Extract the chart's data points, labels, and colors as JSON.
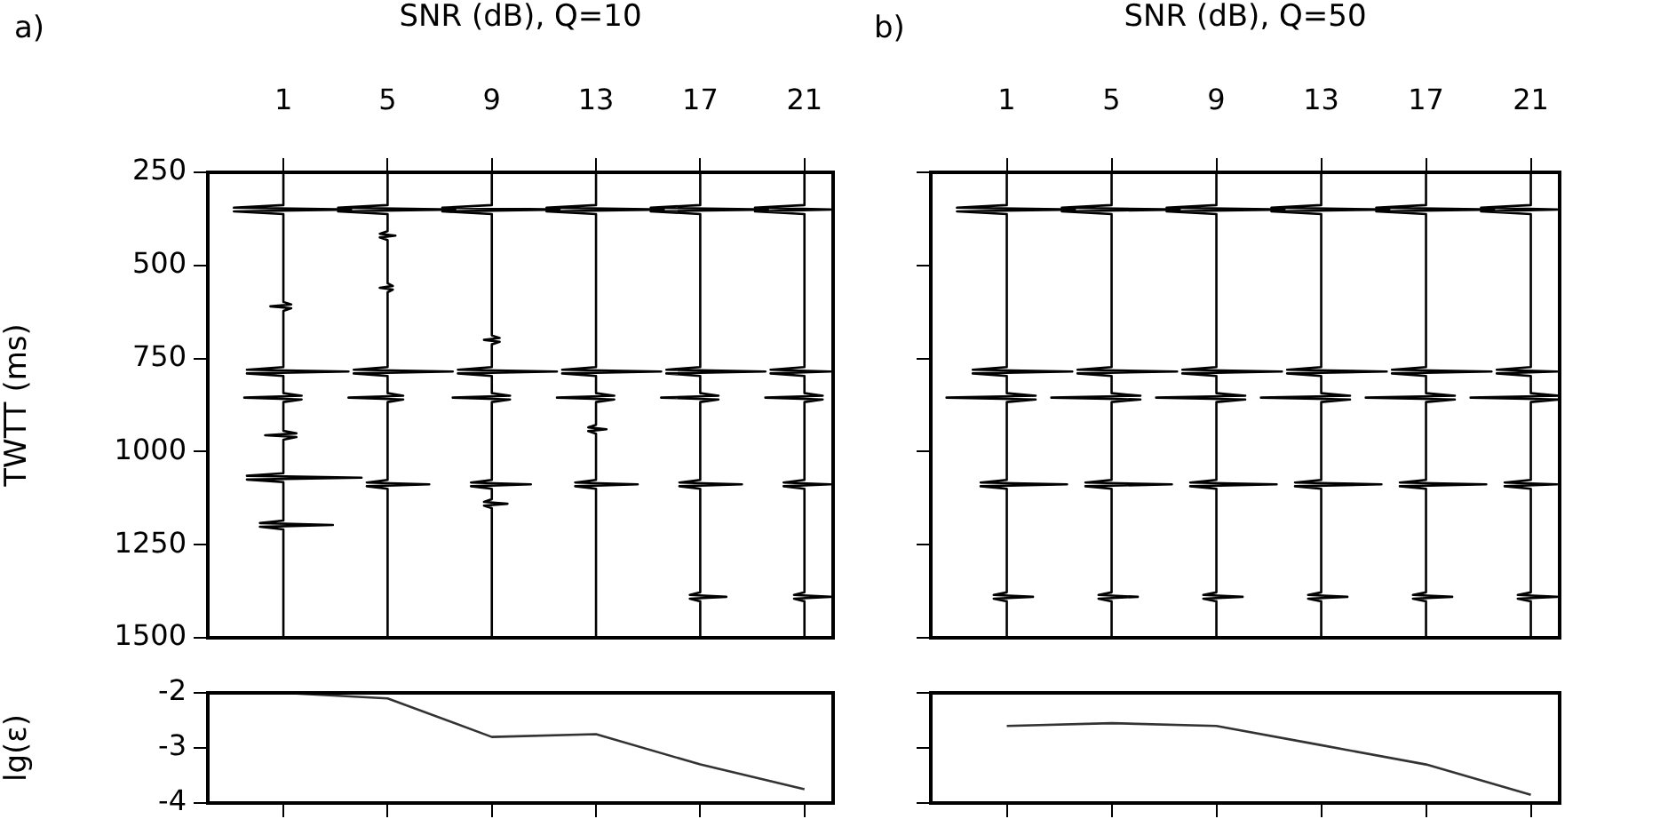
{
  "chart_data": [
    {
      "type": "line",
      "xlabel": "SNR (dB), Q=10",
      "ylabel": "TWTT (ms)",
      "annotations": [
        "a)"
      ],
      "xlim": [
        -1.9,
        22.1
      ],
      "xticks": [
        1,
        5,
        9,
        13,
        17,
        21
      ],
      "ylim": [
        1500,
        250
      ],
      "yticks": [
        250,
        500,
        750,
        1000,
        1250,
        1500
      ],
      "marker": "none",
      "line_style": "solid",
      "series": [
        {
          "color": "#000000",
          "x": [
            1,
            1,
            -0.9,
            3.6,
            -0.9,
            1,
            1,
            1.3,
            0.5,
            1.3,
            1,
            1,
            -0.4,
            3.5,
            -0.4,
            1,
            1,
            1.7,
            -0.5,
            1.7,
            1,
            1,
            1.5,
            0.3,
            1.5,
            1,
            1,
            -0.4,
            4,
            -0.4,
            1,
            1,
            0.1,
            2.9,
            0.1,
            1,
            1
          ],
          "values": [
            250,
            338,
            345,
            350,
            355,
            362,
            598,
            605,
            610,
            615,
            622,
            773,
            780,
            785,
            790,
            797,
            843,
            850,
            855,
            860,
            867,
            944,
            951,
            956,
            961,
            968,
            1058,
            1065,
            1070,
            1075,
            1082,
            1185,
            1192,
            1197,
            1202,
            1209,
            1500
          ]
        },
        {
          "color": "#000000",
          "x": [
            5,
            5,
            3.1,
            7.6,
            3.1,
            5,
            5,
            4.7,
            5.3,
            4.7,
            5,
            5,
            5.2,
            4.7,
            5.2,
            5,
            5,
            3.7,
            7.5,
            3.7,
            5,
            5,
            5.6,
            3.5,
            5.6,
            5,
            5,
            4.2,
            6.6,
            4.2,
            5,
            5
          ],
          "values": [
            250,
            338,
            345,
            350,
            355,
            362,
            408,
            415,
            420,
            425,
            432,
            548,
            555,
            560,
            565,
            572,
            773,
            780,
            785,
            790,
            797,
            843,
            850,
            855,
            860,
            867,
            1076,
            1083,
            1088,
            1093,
            1100,
            1500
          ]
        },
        {
          "color": "#000000",
          "x": [
            9,
            9,
            7.1,
            11.6,
            7.1,
            9,
            9,
            9.3,
            8.7,
            9.3,
            9,
            9,
            7.7,
            11.5,
            7.7,
            9,
            9,
            9.7,
            7.5,
            9.7,
            9,
            9,
            8.2,
            10.5,
            8.2,
            9,
            9,
            8.7,
            9.6,
            8.7,
            9,
            9
          ],
          "values": [
            250,
            338,
            345,
            350,
            355,
            362,
            688,
            695,
            700,
            705,
            712,
            773,
            780,
            785,
            790,
            797,
            843,
            850,
            855,
            860,
            867,
            1076,
            1083,
            1088,
            1093,
            1100,
            1128,
            1135,
            1140,
            1145,
            1152,
            1500
          ]
        },
        {
          "color": "#000000",
          "x": [
            13,
            13,
            11.1,
            15.6,
            11.1,
            13,
            13,
            11.7,
            15.5,
            11.7,
            13,
            13,
            13.7,
            11.5,
            13.7,
            13,
            13,
            12.7,
            13.4,
            12.7,
            13,
            13,
            12.2,
            14.6,
            12.2,
            13,
            13
          ],
          "values": [
            250,
            338,
            345,
            350,
            355,
            362,
            773,
            780,
            785,
            790,
            797,
            843,
            850,
            855,
            860,
            867,
            928,
            935,
            940,
            945,
            952,
            1076,
            1083,
            1088,
            1093,
            1100,
            1500
          ]
        },
        {
          "color": "#000000",
          "x": [
            17,
            17,
            15.1,
            19.6,
            15.1,
            17,
            17,
            15.7,
            19.5,
            15.7,
            17,
            17,
            17.7,
            15.5,
            17.7,
            17,
            17,
            16.2,
            18.6,
            16.2,
            17,
            17,
            16.6,
            18,
            16.6,
            17,
            17
          ],
          "values": [
            250,
            338,
            345,
            350,
            355,
            362,
            773,
            780,
            785,
            790,
            797,
            843,
            850,
            855,
            860,
            867,
            1076,
            1083,
            1088,
            1093,
            1100,
            1378,
            1385,
            1390,
            1395,
            1402,
            1500
          ]
        },
        {
          "color": "#000000",
          "x": [
            21,
            21,
            19.1,
            22,
            19.1,
            21,
            21,
            19.7,
            22,
            19.7,
            21,
            21,
            21.7,
            19.5,
            21.7,
            21,
            21,
            20.2,
            22,
            20.2,
            21,
            21,
            20.6,
            22,
            20.6,
            21,
            21
          ],
          "values": [
            250,
            338,
            345,
            350,
            355,
            362,
            773,
            780,
            785,
            790,
            797,
            843,
            850,
            855,
            860,
            867,
            1076,
            1083,
            1088,
            1093,
            1100,
            1378,
            1385,
            1390,
            1395,
            1402,
            1500
          ]
        }
      ]
    },
    {
      "type": "line",
      "xlabel": "SNR (dB), Q=50",
      "annotations": [
        "b)"
      ],
      "xlim": [
        -1.9,
        22.1
      ],
      "xticks": [
        1,
        5,
        9,
        13,
        17,
        21
      ],
      "ylim": [
        1500,
        250
      ],
      "yticks": [
        250,
        500,
        750,
        1000,
        1250,
        1500
      ],
      "tick_labels": "x",
      "marker": "none",
      "line_style": "solid",
      "series": [
        {
          "color": "#000000",
          "x": [
            1,
            1,
            -0.9,
            3.6,
            -0.9,
            1,
            1,
            -0.3,
            3.5,
            -0.3,
            1,
            1,
            2.1,
            -1.3,
            2.1,
            1,
            1,
            0,
            3.3,
            0,
            1,
            1,
            0.5,
            2,
            0.5,
            1,
            1
          ],
          "values": [
            250,
            338,
            345,
            350,
            355,
            362,
            773,
            780,
            785,
            790,
            797,
            843,
            850,
            855,
            860,
            867,
            1076,
            1083,
            1088,
            1093,
            1100,
            1378,
            1385,
            1390,
            1395,
            1402,
            1500
          ]
        },
        {
          "color": "#000000",
          "x": [
            5,
            5,
            3.1,
            7.6,
            3.1,
            5,
            5,
            3.7,
            7.5,
            3.7,
            5,
            5,
            6.1,
            2.7,
            6.1,
            5,
            5,
            4,
            7.3,
            4,
            5,
            5,
            4.5,
            6,
            4.5,
            5,
            5
          ],
          "values": [
            250,
            338,
            345,
            350,
            355,
            362,
            773,
            780,
            785,
            790,
            797,
            843,
            850,
            855,
            860,
            867,
            1076,
            1083,
            1088,
            1093,
            1100,
            1378,
            1385,
            1390,
            1395,
            1402,
            1500
          ]
        },
        {
          "color": "#000000",
          "x": [
            9,
            9,
            7.1,
            11.6,
            7.1,
            9,
            9,
            7.7,
            11.5,
            7.7,
            9,
            9,
            10.1,
            6.7,
            10.1,
            9,
            9,
            8,
            11.3,
            8,
            9,
            9,
            8.5,
            10,
            8.5,
            9,
            9
          ],
          "values": [
            250,
            338,
            345,
            350,
            355,
            362,
            773,
            780,
            785,
            790,
            797,
            843,
            850,
            855,
            860,
            867,
            1076,
            1083,
            1088,
            1093,
            1100,
            1378,
            1385,
            1390,
            1395,
            1402,
            1500
          ]
        },
        {
          "color": "#000000",
          "x": [
            13,
            13,
            11.1,
            15.6,
            11.1,
            13,
            13,
            11.7,
            15.5,
            11.7,
            13,
            13,
            14.1,
            10.7,
            14.1,
            13,
            13,
            12,
            15.3,
            12,
            13,
            13,
            12.5,
            14,
            12.5,
            13,
            13
          ],
          "values": [
            250,
            338,
            345,
            350,
            355,
            362,
            773,
            780,
            785,
            790,
            797,
            843,
            850,
            855,
            860,
            867,
            1076,
            1083,
            1088,
            1093,
            1100,
            1378,
            1385,
            1390,
            1395,
            1402,
            1500
          ]
        },
        {
          "color": "#000000",
          "x": [
            17,
            17,
            15.1,
            19.6,
            15.1,
            17,
            17,
            15.7,
            19.5,
            15.7,
            17,
            17,
            18.1,
            14.7,
            18.1,
            17,
            17,
            16,
            19.3,
            16,
            17,
            17,
            16.5,
            18,
            16.5,
            17,
            17
          ],
          "values": [
            250,
            338,
            345,
            350,
            355,
            362,
            773,
            780,
            785,
            790,
            797,
            843,
            850,
            855,
            860,
            867,
            1076,
            1083,
            1088,
            1093,
            1100,
            1378,
            1385,
            1390,
            1395,
            1402,
            1500
          ]
        },
        {
          "color": "#000000",
          "x": [
            21,
            21,
            19.1,
            22,
            19.1,
            21,
            21,
            19.7,
            22,
            19.7,
            21,
            21,
            22.1,
            18.7,
            22.1,
            21,
            21,
            20,
            22,
            20,
            21,
            21,
            20.5,
            22,
            20.5,
            21,
            21
          ],
          "values": [
            250,
            338,
            345,
            350,
            355,
            362,
            773,
            780,
            785,
            790,
            797,
            843,
            850,
            855,
            860,
            867,
            1076,
            1083,
            1088,
            1093,
            1100,
            1378,
            1385,
            1390,
            1395,
            1402,
            1500
          ]
        }
      ]
    },
    {
      "type": "line",
      "ylabel": "lg(ε)",
      "xlim": [
        -1.9,
        22.1
      ],
      "xticks": [
        1,
        5,
        9,
        13,
        17,
        21
      ],
      "ylim": [
        -4,
        -2
      ],
      "yticks": [
        -2,
        -3,
        -4
      ],
      "tick_labels": "y",
      "marker": "none",
      "line_style": "solid",
      "series": [
        {
          "color": "#333333",
          "x": [
            1,
            5,
            9,
            13,
            17,
            21
          ],
          "values": [
            -2.0,
            -2.1,
            -2.8,
            -2.75,
            -3.3,
            -3.75
          ]
        }
      ]
    },
    {
      "type": "line",
      "xlim": [
        -1.9,
        22.1
      ],
      "xticks": [
        1,
        5,
        9,
        13,
        17,
        21
      ],
      "ylim": [
        -4,
        -2
      ],
      "yticks": [
        -2,
        -3,
        -4
      ],
      "tick_labels": false,
      "marker": "none",
      "line_style": "solid",
      "series": [
        {
          "color": "#333333",
          "x": [
            1,
            5,
            9,
            13,
            17,
            21
          ],
          "values": [
            -2.6,
            -2.55,
            -2.6,
            -2.95,
            -3.3,
            -3.85
          ]
        }
      ]
    }
  ]
}
